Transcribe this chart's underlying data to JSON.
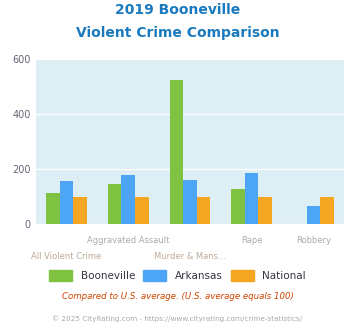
{
  "title_line1": "2019 Booneville",
  "title_line2": "Violent Crime Comparison",
  "title_color": "#1a7abf",
  "categories": [
    "All Violent Crime",
    "Aggravated Assault",
    "Murder & Mans...",
    "Rape",
    "Robbery"
  ],
  "series": {
    "Booneville": [
      115,
      148,
      525,
      128,
      0
    ],
    "Arkansas": [
      157,
      180,
      163,
      188,
      68
    ],
    "National": [
      100,
      100,
      100,
      100,
      100
    ]
  },
  "colors": {
    "Booneville": "#7fc241",
    "Arkansas": "#4da6f5",
    "National": "#f5a623"
  },
  "ylim": [
    0,
    600
  ],
  "yticks": [
    0,
    200,
    400,
    600
  ],
  "plot_bg": "#ddeef5",
  "grid_color": "#ffffff",
  "footnote1": "Compared to U.S. average. (U.S. average equals 100)",
  "footnote2": "© 2025 CityRating.com - https://www.cityrating.com/crime-statistics/",
  "footnote1_color": "#cc4400",
  "footnote2_color": "#aaaaaa",
  "top_labels": [
    "",
    "Aggravated Assault",
    "",
    "Rape",
    "Robbery"
  ],
  "bot_labels": [
    "All Violent Crime",
    "",
    "Murder & Mans...",
    "",
    ""
  ],
  "top_label_color": "#aaaaaa",
  "bot_label_color": "#bbaa99"
}
